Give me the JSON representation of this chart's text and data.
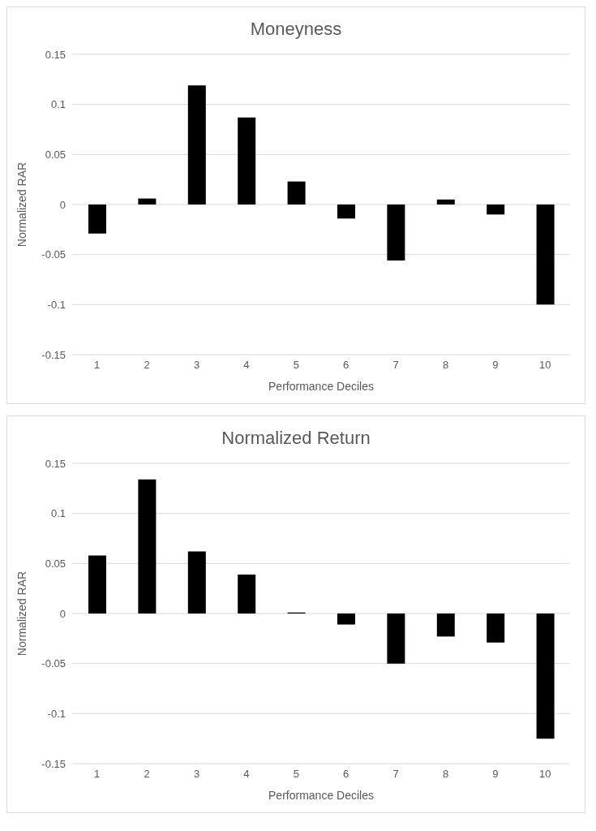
{
  "chart_data": [
    {
      "type": "bar",
      "title": "Moneyness",
      "xlabel": "Performance Deciles",
      "ylabel": "Normalized RAR",
      "categories": [
        "1",
        "2",
        "3",
        "4",
        "5",
        "6",
        "7",
        "8",
        "9",
        "10"
      ],
      "values": [
        -0.029,
        0.006,
        0.119,
        0.087,
        0.023,
        -0.014,
        -0.056,
        0.005,
        -0.01,
        -0.1
      ],
      "color": "#000000",
      "ylim": [
        -0.15,
        0.15
      ],
      "yticks": [
        -0.15,
        -0.1,
        -0.05,
        0,
        0.05,
        0.1,
        0.15
      ],
      "grid": "y",
      "legend": false
    },
    {
      "type": "bar",
      "title": "Normalized Return",
      "xlabel": "Performance Deciles",
      "ylabel": "Normalized RAR",
      "categories": [
        "1",
        "2",
        "3",
        "4",
        "5",
        "6",
        "7",
        "8",
        "9",
        "10"
      ],
      "values": [
        0.058,
        0.134,
        0.062,
        0.039,
        0.001,
        -0.011,
        -0.05,
        -0.023,
        -0.029,
        -0.125
      ],
      "color": "#000000",
      "ylim": [
        -0.15,
        0.15
      ],
      "yticks": [
        -0.15,
        -0.1,
        -0.05,
        0,
        0.05,
        0.1,
        0.15
      ],
      "grid": "y",
      "legend": false
    }
  ]
}
